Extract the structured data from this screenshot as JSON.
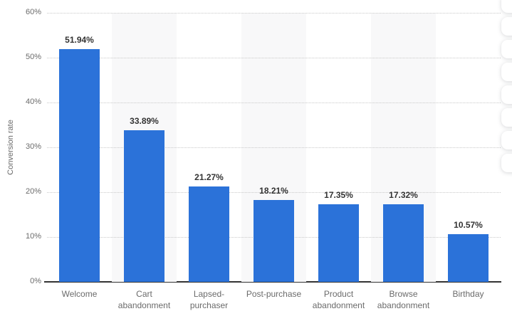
{
  "chart_data": {
    "type": "bar",
    "title": "",
    "categories": [
      "Welcome",
      "Cart abandonment",
      "Lapsed-purchaser",
      "Post-purchase",
      "Product abandonment",
      "Browse abandonment",
      "Birthday"
    ],
    "values": [
      51.94,
      33.89,
      21.27,
      18.21,
      17.35,
      17.32,
      10.57
    ],
    "value_labels": [
      "51.94%",
      "33.89%",
      "21.27%",
      "18.21%",
      "17.35%",
      "17.32%",
      "10.57%"
    ],
    "xlabel": "",
    "ylabel": "Conversion rate",
    "ylim": [
      0,
      60
    ],
    "ytick_step": 10,
    "ytick_labels": [
      "0%",
      "10%",
      "20%",
      "30%",
      "40%",
      "50%",
      "60%"
    ],
    "grid": "horizontal-dotted",
    "legend": "none",
    "colors": {
      "bar": "#2b72d9",
      "column_band": "#f8f8f9",
      "gridline": "#c9c9c9",
      "axis_line": "#333333",
      "value_label": "#333333",
      "tick_label": "#6b6b6b"
    }
  },
  "right_toolbar": {
    "button_count": 8
  }
}
